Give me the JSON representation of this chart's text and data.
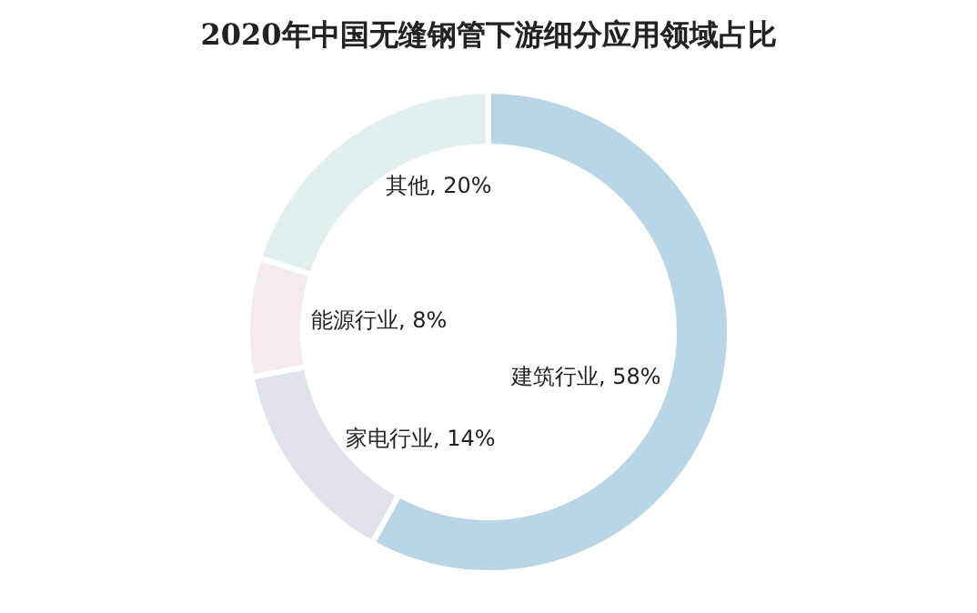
{
  "chart_data": {
    "type": "donut",
    "title": "2020年中国无缝钢管下游细分应用领域占比",
    "categories": [
      "建筑行业",
      "家电行业",
      "能源行业",
      "其他"
    ],
    "values": [
      58,
      14,
      8,
      20
    ],
    "colors": [
      "#b9d5e6",
      "#dfe3ec",
      "#f4ecec",
      "#e2efef"
    ],
    "value_labels": [
      "58%",
      "14%",
      "8%",
      "20%"
    ],
    "legend": false
  }
}
